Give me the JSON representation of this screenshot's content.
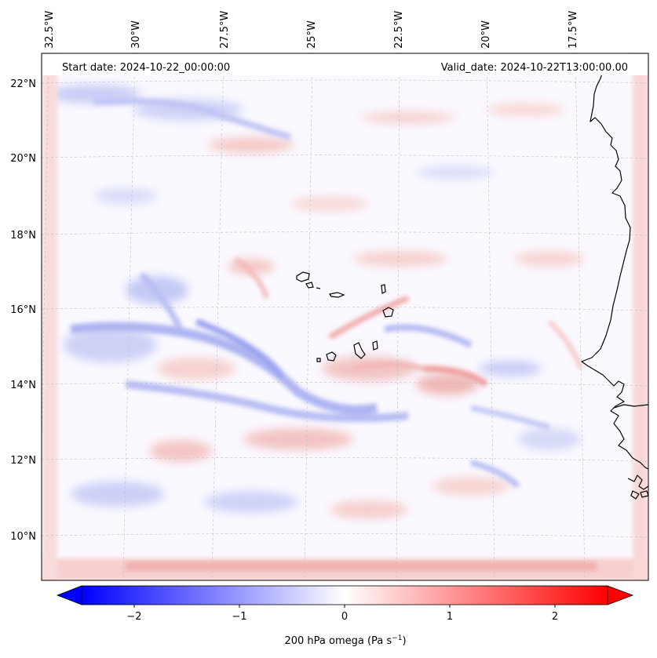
{
  "map": {
    "header_left": "Start date: 2024-10-22_00:00:00",
    "header_right": "Valid_date: 2024-10-22T13:00:00.00",
    "lon_labels": [
      "32.5°W",
      "30°W",
      "27.5°W",
      "25°W",
      "22.5°W",
      "20°W",
      "17.5°W"
    ],
    "lat_labels": [
      "22°N",
      "20°N",
      "18°N",
      "16°N",
      "14°N",
      "12°N",
      "10°N"
    ],
    "lat_values": [
      22,
      20,
      18,
      16,
      14,
      12,
      10
    ],
    "lat_range": [
      8.85,
      22.75
    ],
    "field": "200 hPa omega",
    "units": "Pa s-1",
    "colormap": "bwr",
    "colors": {
      "negative": "#0000ff",
      "zero": "#ffffff",
      "positive": "#ff0000",
      "coastline": "#000000",
      "gridline": "#bdbdbd"
    },
    "features": [
      "Cape Verde Islands",
      "West Africa coastline (Senegal, Gambia, Guinea-Bissau)"
    ]
  },
  "colorbar": {
    "label_main": "200 hPa omega (Pa s",
    "label_sup": "−1",
    "label_close": ")",
    "range": [
      -2.5,
      2.5
    ],
    "extend": "both",
    "tick_values": [
      -2,
      -1,
      0,
      1,
      2
    ],
    "tick_labels": [
      "−2",
      "−1",
      "0",
      "1",
      "2"
    ]
  }
}
